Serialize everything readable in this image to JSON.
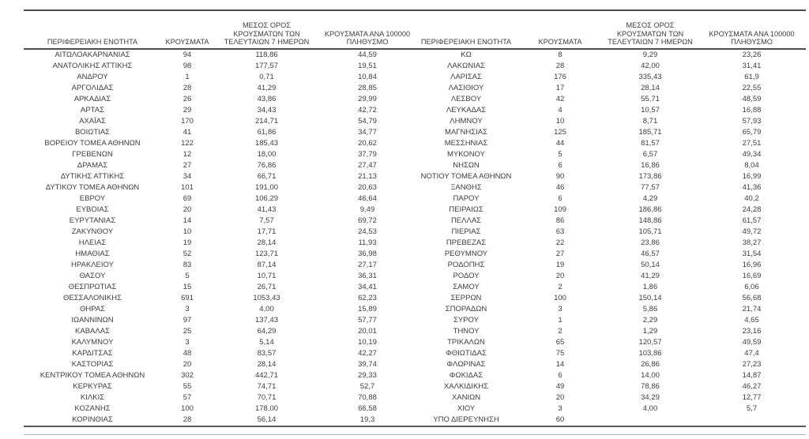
{
  "colors": {
    "text": "#3d3d3d",
    "rule_dark": "#4d4d4d",
    "rule_light": "#b3b3b3",
    "background": "#ffffff"
  },
  "tables": [
    {
      "headers": [
        {
          "id": "region",
          "lines": [
            "ΠΕΡΙΦΕΡΕΙΑΚΗ ΕΝΟΤΗΤΑ"
          ]
        },
        {
          "id": "cases",
          "lines": [
            "ΚΡΟΥΣΜΑΤΑ"
          ]
        },
        {
          "id": "avg7",
          "lines": [
            "ΜΕΣΟΣ ΟΡΟΣ",
            "ΚΡΟΥΣΜΑΤΩΝ ΤΩΝ",
            "ΤΕΛΕΥΤΑΙΩΝ 7 ΗΜΕΡΩΝ"
          ]
        },
        {
          "id": "per100k",
          "lines": [
            "ΚΡΟΥΣΜΑΤΑ ΑΝΑ 100000",
            "ΠΛΗΘΥΣΜΟ"
          ]
        }
      ],
      "rows": [
        [
          "ΑΙΤΩΛΟΑΚΑΡΝΑΝΙΑΣ",
          "94",
          "118,86",
          "44,59"
        ],
        [
          "ΑΝΑΤΟΛΙΚΗΣ ΑΤΤΙΚΗΣ",
          "98",
          "177,57",
          "19,51"
        ],
        [
          "ΑΝΔΡΟΥ",
          "1",
          "0,71",
          "10,84"
        ],
        [
          "ΑΡΓΟΛΙΔΑΣ",
          "28",
          "41,29",
          "28,85"
        ],
        [
          "ΑΡΚΑΔΙΑΣ",
          "26",
          "43,86",
          "29,99"
        ],
        [
          "ΑΡΤΑΣ",
          "29",
          "34,43",
          "42,72"
        ],
        [
          "ΑΧΑΪΑΣ",
          "170",
          "214,71",
          "54,79"
        ],
        [
          "ΒΟΙΩΤΙΑΣ",
          "41",
          "61,86",
          "34,77"
        ],
        [
          "ΒΟΡΕΙΟΥ ΤΟΜΕΑ ΑΘΗΝΩΝ",
          "122",
          "185,43",
          "20,62"
        ],
        [
          "ΓΡΕΒΕΝΩΝ",
          "12",
          "18,00",
          "37,79"
        ],
        [
          "ΔΡΑΜΑΣ",
          "27",
          "76,86",
          "27,47"
        ],
        [
          "ΔΥΤΙΚΗΣ ΑΤΤΙΚΗΣ",
          "34",
          "66,71",
          "21,13"
        ],
        [
          "ΔΥΤΙΚΟΥ ΤΟΜΕΑ ΑΘΗΝΩΝ",
          "101",
          "191,00",
          "20,63"
        ],
        [
          "ΕΒΡΟΥ",
          "69",
          "106,29",
          "46,64"
        ],
        [
          "ΕΥΒΟΙΑΣ",
          "20",
          "41,43",
          "9,49"
        ],
        [
          "ΕΥΡΥΤΑΝΙΑΣ",
          "14",
          "7,57",
          "69,72"
        ],
        [
          "ΖΑΚΥΝΘΟΥ",
          "10",
          "17,71",
          "24,53"
        ],
        [
          "ΗΛΕΙΑΣ",
          "19",
          "28,14",
          "11,93"
        ],
        [
          "ΗΜΑΘΙΑΣ",
          "52",
          "123,71",
          "36,98"
        ],
        [
          "ΗΡΑΚΛΕΙΟΥ",
          "83",
          "87,14",
          "27,17"
        ],
        [
          "ΘΑΣΟΥ",
          "5",
          "10,71",
          "36,31"
        ],
        [
          "ΘΕΣΠΡΩΤΙΑΣ",
          "15",
          "26,71",
          "34,41"
        ],
        [
          "ΘΕΣΣΑΛΟΝΙΚΗΣ",
          "691",
          "1053,43",
          "62,23"
        ],
        [
          "ΘΗΡΑΣ",
          "3",
          "4,00",
          "15,89"
        ],
        [
          "ΙΩΑΝΝΙΝΩΝ",
          "97",
          "137,43",
          "57,77"
        ],
        [
          "ΚΑΒΑΛΑΣ",
          "25",
          "64,29",
          "20,01"
        ],
        [
          "ΚΑΛΥΜΝΟΥ",
          "3",
          "5,14",
          "10,19"
        ],
        [
          "ΚΑΡΔΙΤΣΑΣ",
          "48",
          "83,57",
          "42,27"
        ],
        [
          "ΚΑΣΤΟΡΙΑΣ",
          "20",
          "28,14",
          "39,74"
        ],
        [
          "ΚΕΝΤΡΙΚΟΥ ΤΟΜΕΑ ΑΘΗΝΩΝ",
          "302",
          "442,71",
          "29,33"
        ],
        [
          "ΚΕΡΚΥΡΑΣ",
          "55",
          "74,71",
          "52,7"
        ],
        [
          "ΚΙΛΚΙΣ",
          "57",
          "70,71",
          "70,88"
        ],
        [
          "ΚΟΖΑΝΗΣ",
          "100",
          "178,00",
          "66,58"
        ],
        [
          "ΚΟΡΙΝΘΙΑΣ",
          "28",
          "56,14",
          "19,3"
        ]
      ]
    },
    {
      "headers": [
        {
          "id": "region",
          "lines": [
            "ΠΕΡΙΦΕΡΕΙΑΚΗ ΕΝΟΤΗΤΑ"
          ]
        },
        {
          "id": "cases",
          "lines": [
            "ΚΡΟΥΣΜΑΤΑ"
          ]
        },
        {
          "id": "avg7",
          "lines": [
            "ΜΕΣΟΣ ΟΡΟΣ",
            "ΚΡΟΥΣΜΑΤΩΝ ΤΩΝ",
            "ΤΕΛΕΥΤΑΙΩΝ 7 ΗΜΕΡΩΝ"
          ]
        },
        {
          "id": "per100k",
          "lines": [
            "ΚΡΟΥΣΜΑΤΑ ΑΝΑ 100000",
            "ΠΛΗΘΥΣΜΟ"
          ]
        }
      ],
      "rows": [
        [
          "ΚΩ",
          "8",
          "9,29",
          "23,26"
        ],
        [
          "ΛΑΚΩΝΙΑΣ",
          "28",
          "42,00",
          "31,41"
        ],
        [
          "ΛΑΡΙΣΑΣ",
          "176",
          "335,43",
          "61,9"
        ],
        [
          "ΛΑΣΙΘΙΟΥ",
          "17",
          "28,14",
          "22,55"
        ],
        [
          "ΛΕΣΒΟΥ",
          "42",
          "55,71",
          "48,59"
        ],
        [
          "ΛΕΥΚΑΔΑΣ",
          "4",
          "10,57",
          "16,88"
        ],
        [
          "ΛΗΜΝΟΥ",
          "10",
          "8,71",
          "57,93"
        ],
        [
          "ΜΑΓΝΗΣΙΑΣ",
          "125",
          "185,71",
          "65,79"
        ],
        [
          "ΜΕΣΣΗΝΙΑΣ",
          "44",
          "81,57",
          "27,51"
        ],
        [
          "ΜΥΚΟΝΟΥ",
          "5",
          "6,57",
          "49,34"
        ],
        [
          "ΝΗΣΩΝ",
          "6",
          "16,86",
          "8,04"
        ],
        [
          "ΝΟΤΙΟΥ ΤΟΜΕΑ ΑΘΗΝΩΝ",
          "90",
          "173,86",
          "16,99"
        ],
        [
          "ΞΑΝΘΗΣ",
          "46",
          "77,57",
          "41,36"
        ],
        [
          "ΠΑΡΟΥ",
          "6",
          "4,29",
          "40,2"
        ],
        [
          "ΠΕΙΡΑΙΩΣ",
          "109",
          "186,86",
          "24,28"
        ],
        [
          "ΠΕΛΛΑΣ",
          "86",
          "148,86",
          "61,57"
        ],
        [
          "ΠΙΕΡΙΑΣ",
          "63",
          "105,71",
          "49,72"
        ],
        [
          "ΠΡΕΒΕΖΑΣ",
          "22",
          "23,86",
          "38,27"
        ],
        [
          "ΡΕΘΥΜΝΟΥ",
          "27",
          "46,57",
          "31,54"
        ],
        [
          "ΡΟΔΟΠΗΣ",
          "19",
          "50,14",
          "16,96"
        ],
        [
          "ΡΟΔΟΥ",
          "20",
          "41,29",
          "16,69"
        ],
        [
          "ΣΑΜΟΥ",
          "2",
          "1,86",
          "6,06"
        ],
        [
          "ΣΕΡΡΩΝ",
          "100",
          "150,14",
          "56,68"
        ],
        [
          "ΣΠΟΡΑΔΩΝ",
          "3",
          "5,86",
          "21,74"
        ],
        [
          "ΣΥΡΟΥ",
          "1",
          "2,29",
          "4,65"
        ],
        [
          "ΤΗΝΟΥ",
          "2",
          "1,29",
          "23,16"
        ],
        [
          "ΤΡΙΚΑΛΩΝ",
          "65",
          "120,57",
          "49,59"
        ],
        [
          "ΦΘΙΩΤΙΔΑΣ",
          "75",
          "103,86",
          "47,4"
        ],
        [
          "ΦΛΩΡΙΝΑΣ",
          "14",
          "26,86",
          "27,23"
        ],
        [
          "ΦΩΚΙΔΑΣ",
          "6",
          "14,00",
          "14,87"
        ],
        [
          "ΧΑΛΚΙΔΙΚΗΣ",
          "49",
          "78,86",
          "46,27"
        ],
        [
          "ΧΑΝΙΩΝ",
          "20",
          "34,29",
          "12,77"
        ],
        [
          "ΧΙΟΥ",
          "3",
          "4,00",
          "5,7"
        ],
        [
          "ΥΠΟ ΔΙΕΡΕΥΝΗΣΗ",
          "60",
          "",
          ""
        ]
      ]
    }
  ]
}
